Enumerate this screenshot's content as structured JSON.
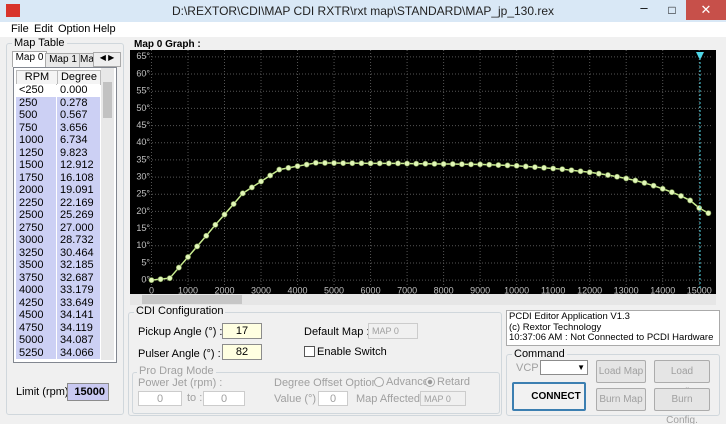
{
  "window": {
    "title": "D:\\REXTOR\\CDI\\MAP CDI RXTR\\rxt map\\STANDARD\\MAP_jp_130.rex"
  },
  "menu": [
    "File",
    "Edit",
    "Option",
    "Help"
  ],
  "map_table": {
    "title": "Map Table",
    "tabs": [
      "Map 0",
      "Map 1",
      "Ma"
    ],
    "columns": [
      "RPM",
      "Degree"
    ],
    "rows": [
      [
        "<250",
        "0.000"
      ],
      [
        "250",
        "0.278"
      ],
      [
        "500",
        "0.567"
      ],
      [
        "750",
        "3.656"
      ],
      [
        "1000",
        "6.734"
      ],
      [
        "1250",
        "9.823"
      ],
      [
        "1500",
        "12.912"
      ],
      [
        "1750",
        "16.108"
      ],
      [
        "2000",
        "19.091"
      ],
      [
        "2250",
        "22.169"
      ],
      [
        "2500",
        "25.269"
      ],
      [
        "2750",
        "27.000"
      ],
      [
        "3000",
        "28.732"
      ],
      [
        "3250",
        "30.464"
      ],
      [
        "3500",
        "32.185"
      ],
      [
        "3750",
        "32.687"
      ],
      [
        "4000",
        "33.179"
      ],
      [
        "4250",
        "33.649"
      ],
      [
        "4500",
        "34.141"
      ],
      [
        "4750",
        "34.119"
      ],
      [
        "5000",
        "34.087"
      ],
      [
        "5250",
        "34.066"
      ]
    ],
    "limit_label": "Limit (rpm):",
    "limit_value": "15000"
  },
  "chart_data": {
    "type": "line",
    "title": "Map 0 Graph :",
    "x": [
      0,
      250,
      500,
      750,
      1000,
      1250,
      1500,
      1750,
      2000,
      2250,
      2500,
      2750,
      3000,
      3250,
      3500,
      3750,
      4000,
      4250,
      4500,
      4750,
      5000,
      5250,
      5500,
      5750,
      6000,
      6250,
      6500,
      6750,
      7000,
      7250,
      7500,
      7750,
      8000,
      8250,
      8500,
      8750,
      9000,
      9250,
      9500,
      9750,
      10000,
      10250,
      10500,
      10750,
      11000,
      11250,
      11500,
      11750,
      12000,
      12250,
      12500,
      12750,
      13000,
      13250,
      13500,
      13750,
      14000,
      14250,
      14500,
      14750,
      15000,
      15250
    ],
    "values": [
      0,
      0.278,
      0.567,
      3.656,
      6.734,
      9.823,
      12.912,
      16.108,
      19.091,
      22.169,
      25.269,
      27.0,
      28.732,
      30.464,
      32.185,
      32.687,
      33.179,
      33.649,
      34.141,
      34.119,
      34.087,
      34.066,
      34.05,
      34.03,
      34.0,
      34.0,
      34.0,
      34.0,
      33.95,
      33.9,
      33.9,
      33.85,
      33.8,
      33.8,
      33.75,
      33.7,
      33.7,
      33.6,
      33.5,
      33.4,
      33.3,
      33.1,
      32.9,
      32.7,
      32.5,
      32.3,
      32.0,
      31.7,
      31.4,
      31.0,
      30.6,
      30.1,
      29.6,
      29.0,
      28.3,
      27.5,
      26.6,
      25.6,
      24.5,
      23.2,
      21.0,
      19.5
    ],
    "color": "#c9ec8f",
    "xlim": [
      -150,
      15350
    ],
    "xticks": [
      0,
      1000,
      2000,
      3000,
      4000,
      5000,
      6000,
      7000,
      8000,
      9000,
      10000,
      11000,
      12000,
      13000,
      14000,
      15000
    ],
    "ylim": [
      -2,
      67
    ],
    "yticks": [
      {
        "value": 0,
        "label": "0°"
      },
      {
        "value": 5,
        "label": "5°"
      },
      {
        "value": 10,
        "label": "10°"
      },
      {
        "value": 15,
        "label": "15°"
      },
      {
        "value": 20,
        "label": "20°"
      },
      {
        "value": 25,
        "label": "25°"
      },
      {
        "value": 30,
        "label": "30°"
      },
      {
        "value": 35,
        "label": "35°"
      },
      {
        "value": 40,
        "label": "40°"
      },
      {
        "value": 45,
        "label": "45°"
      },
      {
        "value": 50,
        "label": "50°"
      },
      {
        "value": 55,
        "label": "55°"
      },
      {
        "value": 60,
        "label": "60°"
      },
      {
        "value": 65,
        "label": "65°"
      }
    ],
    "grid": true
  },
  "cdi_config": {
    "title": "CDI Configuration",
    "pickup_label": "Pickup Angle (°) :",
    "pickup_value": "17",
    "pulser_label": "Pulser Angle (°) :",
    "pulser_value": "82",
    "default_map_label": "Default Map :",
    "default_map_value": "MAP 0",
    "enable_switch": "Enable Switch",
    "pro_drag": {
      "title": "Pro Drag Mode",
      "power_jet_label": "Power Jet (rpm) :",
      "power_jet_from": "0",
      "to_label": "to :",
      "power_jet_to": "0",
      "offset_label": "Degree Offset Option :",
      "advance": "Advance",
      "retard": "Retard",
      "value_label": "Value (°) :",
      "value": "0",
      "map_affected_label": "Map Affected :",
      "map_affected_value": "MAP 0"
    }
  },
  "status": {
    "lines": [
      "PCDI Editor Application V1.3",
      "(c) Rextor Technology",
      "10:37:06 AM : Not Connected to PCDI Hardware"
    ]
  },
  "command": {
    "title": "Command",
    "vcp_label": "VCP :",
    "connect": "CONNECT",
    "load_map": "Load Map",
    "load_config": "Load Config.",
    "burn_map": "Burn Map",
    "burn_config": "Burn Config."
  }
}
